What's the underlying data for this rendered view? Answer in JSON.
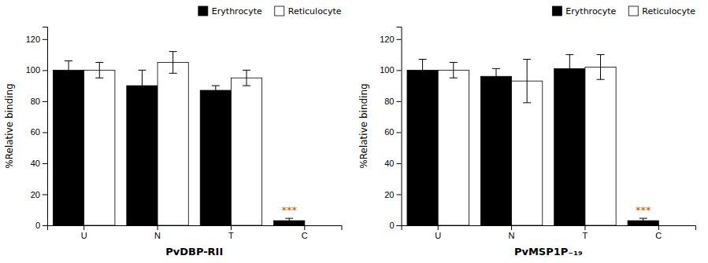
{
  "chart_data": [
    {
      "type": "bar",
      "xlabel": "PvDBP-RII",
      "ylabel": "%Relative binding",
      "categories": [
        "U",
        "N",
        "T",
        "C"
      ],
      "series": [
        {
          "name": "Erythrocyte",
          "color": "#000000",
          "values": [
            100,
            90,
            87,
            3
          ],
          "error": [
            6,
            10,
            3,
            1.5
          ]
        },
        {
          "name": "Reticulocyte",
          "color": "#ffffff",
          "values": [
            100,
            105,
            95,
            0
          ],
          "error": [
            5,
            7,
            5,
            0
          ]
        }
      ],
      "ylim": [
        0,
        128
      ],
      "yticks": [
        0,
        20,
        40,
        60,
        80,
        100,
        120
      ],
      "grid": false,
      "legend": "upper right",
      "annotations": [
        {
          "text": "***",
          "color": "#b85c00",
          "category": "C",
          "series": "Erythrocyte"
        }
      ]
    },
    {
      "type": "bar",
      "xlabel": "PvMSP1P₋₁₉",
      "ylabel": "%Relative binding",
      "categories": [
        "U",
        "N",
        "T",
        "C"
      ],
      "series": [
        {
          "name": "Erythrocyte",
          "color": "#000000",
          "values": [
            100,
            96,
            101,
            3
          ],
          "error": [
            7,
            5,
            9,
            1.5
          ]
        },
        {
          "name": "Reticulocyte",
          "color": "#ffffff",
          "values": [
            100,
            93,
            102,
            0
          ],
          "error": [
            5,
            14,
            8,
            0
          ]
        }
      ],
      "ylim": [
        0,
        128
      ],
      "yticks": [
        0,
        20,
        40,
        60,
        80,
        100,
        120
      ],
      "grid": false,
      "legend": "upper right",
      "annotations": [
        {
          "text": "***",
          "color": "#b85c00",
          "category": "C",
          "series": "Erythrocyte"
        }
      ]
    }
  ]
}
